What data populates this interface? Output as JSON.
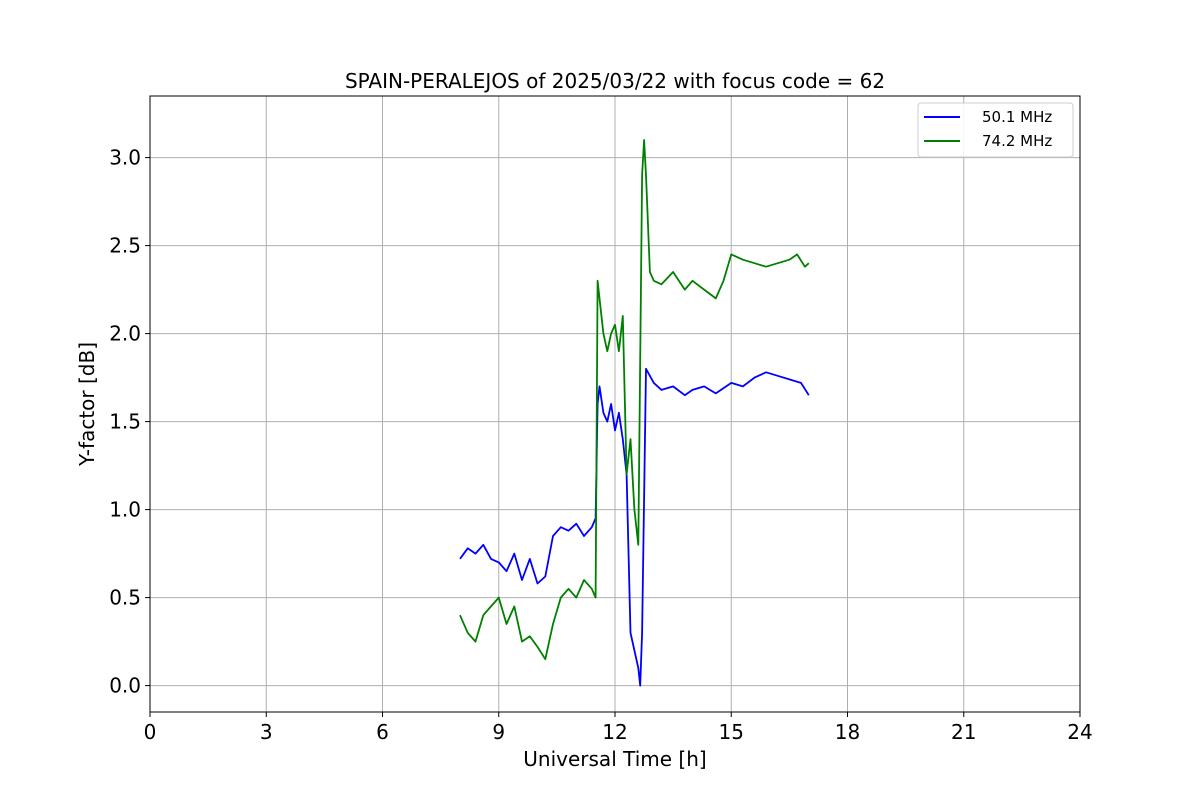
{
  "chart_data": {
    "type": "line",
    "title": "SPAIN-PERALEJOS of 2025/03/22 with focus code = 62",
    "xlabel": "Universal Time [h]",
    "ylabel": "Y-factor [dB]",
    "xlim": [
      0,
      24
    ],
    "ylim": [
      -0.15,
      3.35
    ],
    "xticks": [
      0,
      3,
      6,
      9,
      12,
      15,
      18,
      21,
      24
    ],
    "xtick_labels": [
      "0",
      "3",
      "6",
      "9",
      "12",
      "15",
      "18",
      "21",
      "24"
    ],
    "yticks": [
      0.0,
      0.5,
      1.0,
      1.5,
      2.0,
      2.5,
      3.0
    ],
    "ytick_labels": [
      "0.0",
      "0.5",
      "1.0",
      "1.5",
      "2.0",
      "2.5",
      "3.0"
    ],
    "grid": true,
    "legend_position": "top-right",
    "series": [
      {
        "name": "50.1 MHz",
        "color": "#0000ff",
        "x": [
          8.0,
          8.2,
          8.4,
          8.6,
          8.8,
          9.0,
          9.2,
          9.4,
          9.6,
          9.8,
          10.0,
          10.2,
          10.4,
          10.6,
          10.8,
          11.0,
          11.2,
          11.4,
          11.5,
          11.55,
          11.6,
          11.7,
          11.8,
          11.9,
          12.0,
          12.1,
          12.2,
          12.3,
          12.4,
          12.5,
          12.6,
          12.65,
          12.7,
          12.8,
          13.0,
          13.2,
          13.5,
          13.8,
          14.0,
          14.3,
          14.6,
          15.0,
          15.3,
          15.6,
          15.9,
          16.2,
          16.5,
          16.8,
          17.0
        ],
        "y": [
          0.72,
          0.78,
          0.75,
          0.8,
          0.72,
          0.7,
          0.65,
          0.75,
          0.6,
          0.72,
          0.58,
          0.62,
          0.85,
          0.9,
          0.88,
          0.92,
          0.85,
          0.9,
          0.95,
          1.6,
          1.7,
          1.55,
          1.5,
          1.6,
          1.45,
          1.55,
          1.4,
          1.2,
          0.3,
          0.2,
          0.1,
          0.0,
          0.3,
          1.8,
          1.72,
          1.68,
          1.7,
          1.65,
          1.68,
          1.7,
          1.66,
          1.72,
          1.7,
          1.75,
          1.78,
          1.76,
          1.74,
          1.72,
          1.65
        ]
      },
      {
        "name": "74.2 MHz",
        "color": "#008000",
        "x": [
          8.0,
          8.2,
          8.4,
          8.6,
          8.8,
          9.0,
          9.2,
          9.4,
          9.6,
          9.8,
          10.0,
          10.2,
          10.4,
          10.6,
          10.8,
          11.0,
          11.2,
          11.4,
          11.5,
          11.55,
          11.6,
          11.7,
          11.8,
          11.9,
          12.0,
          12.1,
          12.2,
          12.3,
          12.4,
          12.5,
          12.6,
          12.7,
          12.75,
          12.8,
          12.9,
          13.0,
          13.2,
          13.5,
          13.8,
          14.0,
          14.3,
          14.6,
          14.8,
          15.0,
          15.3,
          15.6,
          15.9,
          16.2,
          16.5,
          16.7,
          16.9,
          17.0
        ],
        "y": [
          0.4,
          0.3,
          0.25,
          0.4,
          0.45,
          0.5,
          0.35,
          0.45,
          0.25,
          0.28,
          0.22,
          0.15,
          0.35,
          0.5,
          0.55,
          0.5,
          0.6,
          0.55,
          0.5,
          2.3,
          2.2,
          2.0,
          1.9,
          2.0,
          2.05,
          1.9,
          2.1,
          1.2,
          1.4,
          1.0,
          0.8,
          2.9,
          3.1,
          2.9,
          2.35,
          2.3,
          2.28,
          2.35,
          2.25,
          2.3,
          2.25,
          2.2,
          2.3,
          2.45,
          2.42,
          2.4,
          2.38,
          2.4,
          2.42,
          2.45,
          2.38,
          2.4
        ]
      }
    ]
  }
}
